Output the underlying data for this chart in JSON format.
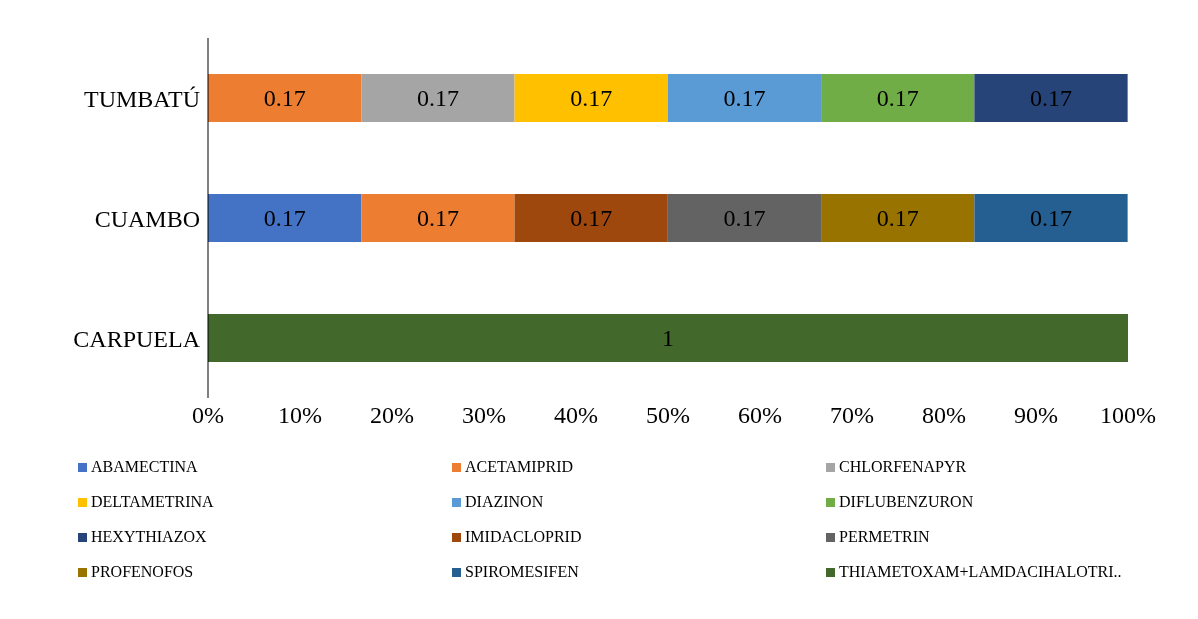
{
  "chart_data": {
    "type": "bar",
    "orientation": "horizontal",
    "stacked": true,
    "categories": [
      "TUMBATÚ",
      "CUAMBO",
      "CARPUELA"
    ],
    "xlim": [
      0,
      1
    ],
    "xticks": [
      {
        "value": 0,
        "label": "0%"
      },
      {
        "value": 0.1,
        "label": "10%"
      },
      {
        "value": 0.2,
        "label": "20%"
      },
      {
        "value": 0.3,
        "label": "30%"
      },
      {
        "value": 0.4,
        "label": "40%"
      },
      {
        "value": 0.5,
        "label": "50%"
      },
      {
        "value": 0.6,
        "label": "60%"
      },
      {
        "value": 0.7,
        "label": "70%"
      },
      {
        "value": 0.8,
        "label": "80%"
      },
      {
        "value": 0.9,
        "label": "90%"
      },
      {
        "value": 1,
        "label": "100%"
      }
    ],
    "grid": false,
    "legend": "bottom",
    "series": [
      {
        "name": "ABAMECTINA",
        "color": "#4472c4",
        "values": [
          null,
          0.1666,
          null
        ],
        "value_labels": [
          null,
          "0.17",
          null
        ]
      },
      {
        "name": "ACETAMIPRID",
        "color": "#ed7d31",
        "values": [
          0.1666,
          0.1666,
          null
        ],
        "value_labels": [
          "0.17",
          "0.17",
          null
        ]
      },
      {
        "name": "CHLORFENAPYR",
        "color": "#a5a5a5",
        "values": [
          0.1666,
          null,
          null
        ],
        "value_labels": [
          "0.17",
          null,
          null
        ]
      },
      {
        "name": "DELTAMETRINA",
        "color": "#ffc000",
        "values": [
          0.1666,
          null,
          null
        ],
        "value_labels": [
          "0.17",
          null,
          null
        ]
      },
      {
        "name": "DIAZINON",
        "color": "#5b9bd5",
        "values": [
          0.1666,
          null,
          null
        ],
        "value_labels": [
          "0.17",
          null,
          null
        ]
      },
      {
        "name": "DIFLUBENZURON",
        "color": "#70ad47",
        "values": [
          0.1666,
          null,
          null
        ],
        "value_labels": [
          "0.17",
          null,
          null
        ]
      },
      {
        "name": "HEXYTHIAZOX",
        "color": "#264478",
        "values": [
          0.1666,
          null,
          null
        ],
        "value_labels": [
          "0.17",
          null,
          null
        ]
      },
      {
        "name": "IMIDACLOPRID",
        "color": "#9e480e",
        "values": [
          null,
          0.1666,
          null
        ],
        "value_labels": [
          null,
          "0.17",
          null
        ]
      },
      {
        "name": "PERMETRIN",
        "color": "#636363",
        "values": [
          null,
          0.1666,
          null
        ],
        "value_labels": [
          null,
          "0.17",
          null
        ]
      },
      {
        "name": "PROFENOFOS",
        "color": "#997300",
        "values": [
          null,
          0.1666,
          null
        ],
        "value_labels": [
          null,
          "0.17",
          null
        ]
      },
      {
        "name": "SPIROMESIFEN",
        "color": "#255e91",
        "values": [
          null,
          0.1666,
          null
        ],
        "value_labels": [
          null,
          "0.17",
          null
        ]
      },
      {
        "name": "THIAMETOXAM+LAMDACIHALOTRI..",
        "color": "#43682b",
        "values": [
          null,
          null,
          1
        ],
        "value_labels": [
          null,
          null,
          "1"
        ]
      }
    ]
  }
}
